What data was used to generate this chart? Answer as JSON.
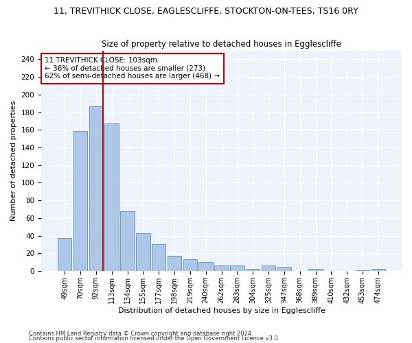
{
  "title1": "11, TREVITHICK CLOSE, EAGLESCLIFFE, STOCKTON-ON-TEES, TS16 0RY",
  "title2": "Size of property relative to detached houses in Egglescliffe",
  "xlabel": "Distribution of detached houses by size in Egglescliffe",
  "ylabel": "Number of detached properties",
  "categories": [
    "49sqm",
    "70sqm",
    "92sqm",
    "113sqm",
    "134sqm",
    "155sqm",
    "177sqm",
    "198sqm",
    "219sqm",
    "240sqm",
    "262sqm",
    "283sqm",
    "304sqm",
    "325sqm",
    "347sqm",
    "368sqm",
    "389sqm",
    "410sqm",
    "432sqm",
    "453sqm",
    "474sqm"
  ],
  "values": [
    37,
    159,
    187,
    167,
    68,
    43,
    30,
    17,
    13,
    10,
    6,
    6,
    2,
    6,
    5,
    0,
    2,
    0,
    0,
    1,
    2
  ],
  "bar_color": "#aec6e8",
  "bar_edge_color": "#5a8fc2",
  "vline_index": 2,
  "vline_color": "#cc0000",
  "annotation_text": "11 TREVITHICK CLOSE: 103sqm\n← 36% of detached houses are smaller (273)\n62% of semi-detached houses are larger (468) →",
  "annotation_box_color": "#ffffff",
  "annotation_box_edge": "#cc0000",
  "ylim": [
    0,
    250
  ],
  "yticks": [
    0,
    20,
    40,
    60,
    80,
    100,
    120,
    140,
    160,
    180,
    200,
    220,
    240
  ],
  "footer1": "Contains HM Land Registry data © Crown copyright and database right 2024.",
  "footer2": "Contains public sector information licensed under the Open Government Licence v3.0.",
  "bg_color": "#eef2fa"
}
